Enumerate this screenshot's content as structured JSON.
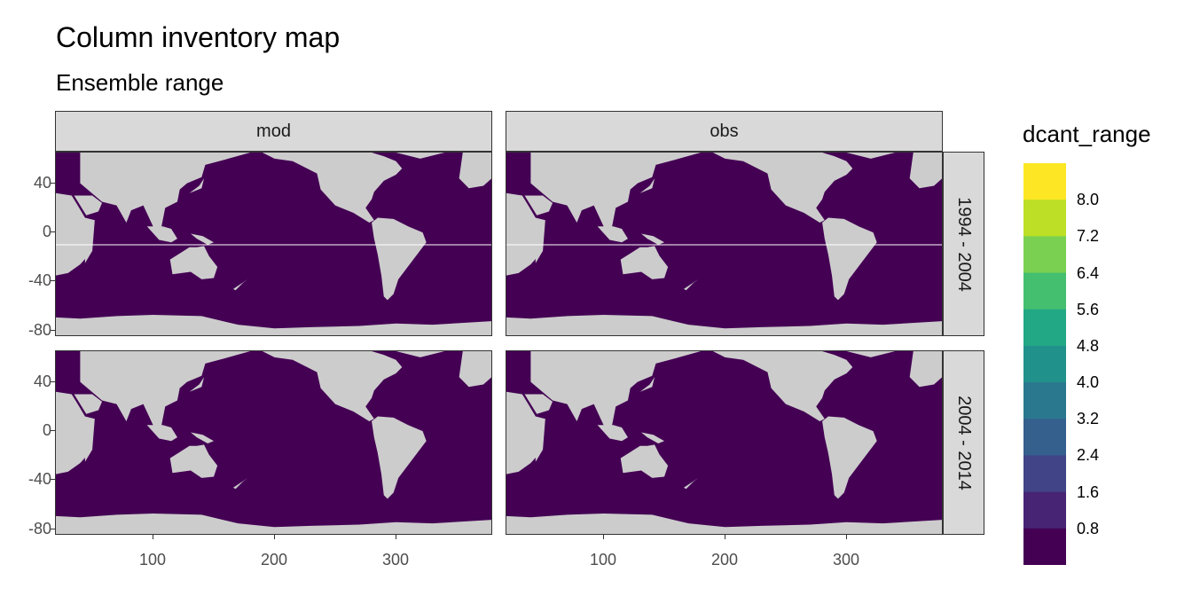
{
  "chart_data": {
    "type": "heatmap",
    "title": "Column inventory map",
    "subtitle": "Ensemble range",
    "xlabel": "",
    "ylabel": "",
    "xlim": [
      20,
      380
    ],
    "ylim": [
      -85,
      65
    ],
    "x_ticks": [
      "100",
      "200",
      "300"
    ],
    "y_ticks": [
      "40",
      "0",
      "-40",
      "-80"
    ],
    "facet_cols": [
      "mod",
      "obs"
    ],
    "facet_rows": [
      "1994 - 2004",
      "2004 - 2014"
    ],
    "fill_value_everywhere": "0 - 0.8",
    "legend": {
      "title": "dcant_range",
      "labels": [
        "8.0",
        "7.2",
        "6.4",
        "5.6",
        "4.8",
        "4.0",
        "3.2",
        "2.4",
        "1.6",
        "0.8"
      ],
      "colors": [
        "#fde725",
        "#bddf26",
        "#7ad151",
        "#44bf70",
        "#22a884",
        "#21918c",
        "#2a788e",
        "#355f8d",
        "#414487",
        "#482475",
        "#440154"
      ],
      "placement": "right"
    },
    "colors": {
      "ocean": "#440154",
      "land": "#cccccc",
      "panel_border": "#333333"
    }
  }
}
